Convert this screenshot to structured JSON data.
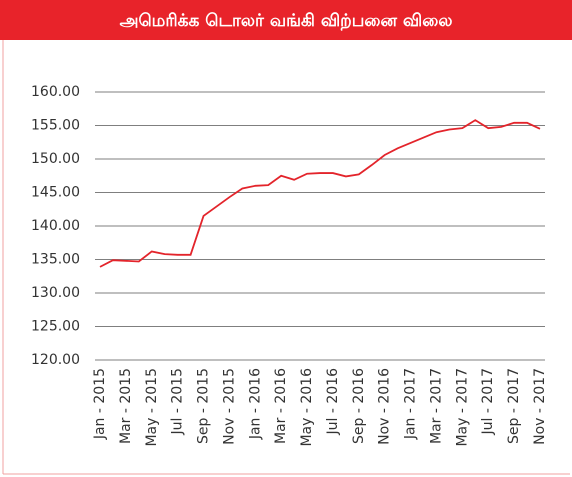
{
  "chart_data": {
    "type": "line",
    "title": "அமெரிக்க டொலர் வங்கி விற்பனை விலை",
    "categories": [
      "Jan - 2015",
      null,
      "Mar - 2015",
      null,
      "May - 2015",
      null,
      "Jul - 2015",
      null,
      "Sep - 2015",
      null,
      "Nov - 2015",
      null,
      "Jan - 2016",
      null,
      "Mar - 2016",
      null,
      "May - 2016",
      null,
      "Jul - 2016",
      null,
      "Sep - 2016",
      null,
      "Nov - 2016",
      null,
      "Jan - 2017",
      null,
      "Mar - 2017",
      null,
      "May - 2017",
      null,
      "Jul - 2017",
      null,
      "Sep - 2017",
      null,
      "Nov - 2017"
    ],
    "series": [
      {
        "color": "#e3242b",
        "values": [
          133.9,
          134.9,
          134.8,
          134.7,
          136.2,
          135.8,
          135.7,
          135.7,
          141.5,
          142.9,
          144.3,
          145.6,
          146.0,
          146.1,
          147.5,
          146.9,
          147.8,
          147.9,
          147.9,
          147.4,
          147.7,
          149.1,
          150.6,
          151.6,
          152.4,
          153.2,
          154.0,
          154.4,
          154.6,
          155.8,
          154.6,
          154.8,
          155.4,
          155.4,
          154.5
        ]
      }
    ],
    "ylim": [
      120,
      160
    ],
    "yticks": [
      {
        "value": 120,
        "label": "120.00"
      },
      {
        "value": 125,
        "label": "125.00"
      },
      {
        "value": 130,
        "label": "130.00"
      },
      {
        "value": 135,
        "label": "135.00"
      },
      {
        "value": 140,
        "label": "140.00"
      },
      {
        "value": 145,
        "label": "145.00"
      },
      {
        "value": 150,
        "label": "150.00"
      },
      {
        "value": 155,
        "label": "155.00"
      },
      {
        "value": 160,
        "label": "160.00"
      }
    ],
    "grid": true
  }
}
